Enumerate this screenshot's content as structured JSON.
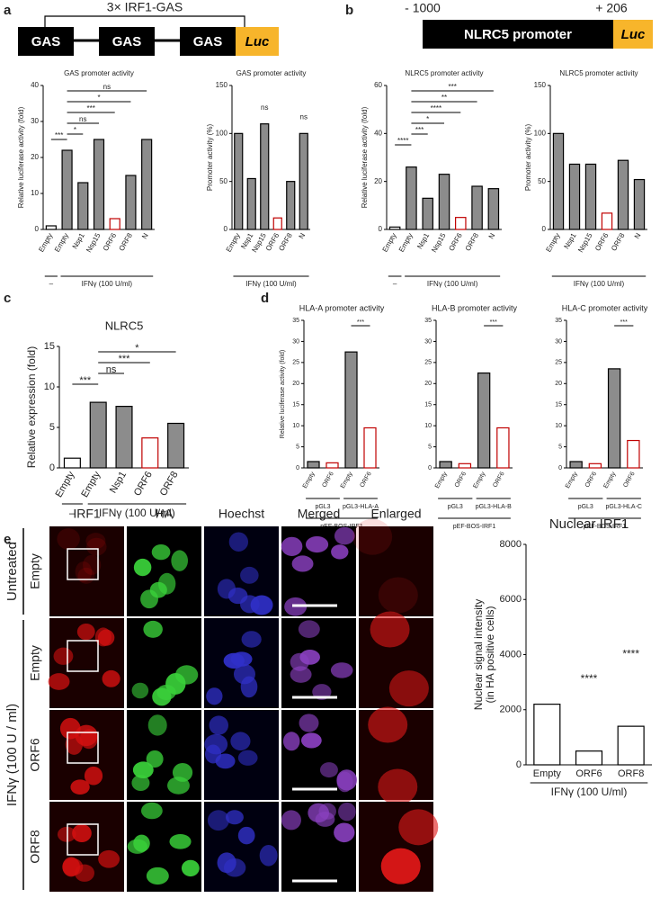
{
  "panel_labels": [
    "a",
    "b",
    "c",
    "d",
    "e"
  ],
  "diagrams": [
    {
      "bracket_label": "3× IRF1-GAS",
      "elements": [
        "GAS",
        "GAS",
        "GAS",
        "Luc"
      ]
    },
    {
      "start": "- 1000",
      "end": "+ 206",
      "elements": [
        "NLRC5 promoter",
        "Luc"
      ]
    }
  ],
  "chart_data": [
    {
      "type": "bar",
      "title": "GAS promoter activity",
      "ylabel": "Relative luciferase activity (fold)",
      "categories": [
        "Empty",
        "Empty",
        "Nsp1",
        "Nsp15",
        "ORF6",
        "ORF8",
        "N"
      ],
      "values": [
        1,
        22,
        13,
        25,
        3,
        15,
        25
      ],
      "colors": [
        "#ffffff",
        "#8c8c8c",
        "#8c8c8c",
        "#8c8c8c",
        "#ffffff",
        "#8c8c8c",
        "#8c8c8c"
      ],
      "edge_colors": [
        "#000000",
        "#000000",
        "#000000",
        "#000000",
        "#c00000",
        "#000000",
        "#000000"
      ],
      "ylim": [
        0,
        40
      ],
      "yticks": [
        0,
        10,
        20,
        30,
        40
      ],
      "annotations": [
        {
          "text": "ns",
          "between": [
            1,
            6
          ]
        },
        {
          "text": "*",
          "between": [
            1,
            5
          ]
        },
        {
          "text": "***",
          "between": [
            1,
            4
          ]
        },
        {
          "text": "ns",
          "between": [
            1,
            3
          ]
        },
        {
          "text": "*",
          "between": [
            1,
            2
          ]
        },
        {
          "text": "***",
          "between": [
            0,
            1
          ]
        }
      ],
      "groups": [
        {
          "label": "–",
          "span": [
            0,
            0
          ],
          "level": 0
        },
        {
          "label": "IFNγ (100 U/ml)",
          "span": [
            1,
            6
          ],
          "level": 0
        }
      ]
    },
    {
      "type": "bar",
      "title": "GAS promoter activity",
      "ylabel": "Promoter activity (%)",
      "categories": [
        "Empty",
        "Nsp1",
        "Nsp15",
        "ORF6",
        "ORF8",
        "N"
      ],
      "values": [
        100,
        53,
        110,
        12,
        50,
        100
      ],
      "colors": [
        "#8c8c8c",
        "#8c8c8c",
        "#8c8c8c",
        "#ffffff",
        "#8c8c8c",
        "#8c8c8c"
      ],
      "edge_colors": [
        "#000000",
        "#000000",
        "#000000",
        "#c00000",
        "#000000",
        "#000000"
      ],
      "ylim": [
        0,
        150
      ],
      "yticks": [
        0,
        50,
        100,
        150
      ],
      "annotations": [
        {
          "text": "ns",
          "over": 2
        },
        {
          "text": "ns",
          "over": 5
        }
      ],
      "groups": [
        {
          "label": "IFNγ (100 U/ml)",
          "span": [
            0,
            5
          ],
          "level": 0
        }
      ]
    },
    {
      "type": "bar",
      "title": "NLRC5 promoter activity",
      "ylabel": "Relative luciferase activity (fold)",
      "categories": [
        "Empty",
        "Empty",
        "Nsp1",
        "Nsp15",
        "ORF6",
        "ORF8",
        "N"
      ],
      "values": [
        1,
        26,
        13,
        23,
        5,
        18,
        17
      ],
      "colors": [
        "#ffffff",
        "#8c8c8c",
        "#8c8c8c",
        "#8c8c8c",
        "#ffffff",
        "#8c8c8c",
        "#8c8c8c"
      ],
      "edge_colors": [
        "#000000",
        "#000000",
        "#000000",
        "#000000",
        "#c00000",
        "#000000",
        "#000000"
      ],
      "ylim": [
        0,
        60
      ],
      "yticks": [
        0,
        20,
        40,
        60
      ],
      "annotations": [
        {
          "text": "***",
          "between": [
            1,
            6
          ]
        },
        {
          "text": "**",
          "between": [
            1,
            5
          ]
        },
        {
          "text": "****",
          "between": [
            1,
            4
          ]
        },
        {
          "text": "*",
          "between": [
            1,
            3
          ]
        },
        {
          "text": "***",
          "between": [
            1,
            2
          ]
        },
        {
          "text": "****",
          "between": [
            0,
            1
          ]
        }
      ],
      "groups": [
        {
          "label": "–",
          "span": [
            0,
            0
          ],
          "level": 0
        },
        {
          "label": "IFNγ (100 U/ml)",
          "span": [
            1,
            6
          ],
          "level": 0
        }
      ]
    },
    {
      "type": "bar",
      "title": "NLRC5 promoter activity",
      "ylabel": "Promoter activity (%)",
      "categories": [
        "Empty",
        "Nsp1",
        "Nsp15",
        "ORF6",
        "ORF8",
        "N"
      ],
      "values": [
        100,
        68,
        68,
        17,
        72,
        52
      ],
      "colors": [
        "#8c8c8c",
        "#8c8c8c",
        "#8c8c8c",
        "#ffffff",
        "#8c8c8c",
        "#8c8c8c"
      ],
      "edge_colors": [
        "#000000",
        "#000000",
        "#000000",
        "#c00000",
        "#000000",
        "#000000"
      ],
      "ylim": [
        0,
        150
      ],
      "yticks": [
        0,
        50,
        100,
        150
      ],
      "groups": [
        {
          "label": "IFNγ (100 U/ml)",
          "span": [
            0,
            5
          ],
          "level": 0
        }
      ]
    },
    {
      "type": "bar",
      "title": "NLRC5",
      "ylabel": "Relative expression (fold)",
      "categories": [
        "Empty",
        "Empty",
        "Nsp1",
        "ORF6",
        "ORF8"
      ],
      "values": [
        1.2,
        8.1,
        7.6,
        3.7,
        5.5
      ],
      "colors": [
        "#ffffff",
        "#8c8c8c",
        "#8c8c8c",
        "#ffffff",
        "#8c8c8c"
      ],
      "edge_colors": [
        "#000000",
        "#000000",
        "#000000",
        "#c00000",
        "#000000"
      ],
      "ylim": [
        0,
        15
      ],
      "yticks": [
        0,
        5,
        10,
        15
      ],
      "annotations": [
        {
          "text": "*",
          "between": [
            1,
            4
          ]
        },
        {
          "text": "***",
          "between": [
            1,
            3
          ]
        },
        {
          "text": "ns",
          "between": [
            1,
            2
          ]
        },
        {
          "text": "***",
          "between": [
            0,
            1
          ]
        }
      ],
      "groups": [
        {
          "label": "–",
          "span": [
            0,
            0
          ],
          "level": 0
        },
        {
          "label": "IFNγ (100 U/ml)",
          "span": [
            1,
            4
          ],
          "level": 0
        }
      ]
    },
    {
      "type": "bar",
      "title": "HLA-A promoter activity",
      "ylabel": "Relative luciferase activity (fold)",
      "categories": [
        "Empty",
        "ORF6",
        "Empty",
        "ORF6"
      ],
      "values": [
        1.5,
        1.2,
        27.5,
        9.5
      ],
      "colors": [
        "#8c8c8c",
        "#ffffff",
        "#8c8c8c",
        "#ffffff"
      ],
      "edge_colors": [
        "#000000",
        "#c00000",
        "#000000",
        "#c00000"
      ],
      "ylim": [
        0,
        35
      ],
      "yticks": [
        0,
        5,
        10,
        15,
        20,
        25,
        30,
        35
      ],
      "annotations": [
        {
          "text": "***",
          "between": [
            2,
            3
          ]
        }
      ],
      "groups": [
        {
          "label": "pGL3",
          "span": [
            0,
            1
          ],
          "level": 0
        },
        {
          "label": "pGL3-HLA-A",
          "span": [
            2,
            3
          ],
          "level": 0
        },
        {
          "label": "pEF-BOS-IRF1",
          "span": [
            0,
            3
          ],
          "level": 1
        }
      ]
    },
    {
      "type": "bar",
      "title": "HLA-B promoter activity",
      "categories": [
        "Empty",
        "ORF6",
        "Empty",
        "ORF6"
      ],
      "values": [
        1.5,
        1,
        22.5,
        9.5
      ],
      "colors": [
        "#8c8c8c",
        "#ffffff",
        "#8c8c8c",
        "#ffffff"
      ],
      "edge_colors": [
        "#000000",
        "#c00000",
        "#000000",
        "#c00000"
      ],
      "ylim": [
        0,
        35
      ],
      "yticks": [
        0,
        5,
        10,
        15,
        20,
        25,
        30,
        35
      ],
      "annotations": [
        {
          "text": "***",
          "between": [
            2,
            3
          ]
        }
      ],
      "groups": [
        {
          "label": "pGL3",
          "span": [
            0,
            1
          ],
          "level": 0
        },
        {
          "label": "pGL3-HLA-B",
          "span": [
            2,
            3
          ],
          "level": 0
        },
        {
          "label": "pEF-BOS-IRF1",
          "span": [
            0,
            3
          ],
          "level": 1
        }
      ]
    },
    {
      "type": "bar",
      "title": "HLA-C promoter activity",
      "categories": [
        "Empty",
        "ORF6",
        "Empty",
        "ORF6"
      ],
      "values": [
        1.5,
        1,
        23.5,
        6.5
      ],
      "colors": [
        "#8c8c8c",
        "#ffffff",
        "#8c8c8c",
        "#ffffff"
      ],
      "edge_colors": [
        "#000000",
        "#c00000",
        "#000000",
        "#c00000"
      ],
      "ylim": [
        0,
        35
      ],
      "yticks": [
        0,
        5,
        10,
        15,
        20,
        25,
        30,
        35
      ],
      "annotations": [
        {
          "text": "***",
          "between": [
            2,
            3
          ]
        }
      ],
      "groups": [
        {
          "label": "pGL3",
          "span": [
            0,
            1
          ],
          "level": 0
        },
        {
          "label": "pGL3-HLA-C",
          "span": [
            2,
            3
          ],
          "level": 0
        },
        {
          "label": "pEF-BOS-IRF1",
          "span": [
            0,
            3
          ],
          "level": 1
        }
      ]
    },
    {
      "type": "bar",
      "title": "Nuclear IRF1",
      "ylabel": [
        "Nuclear signal intensity",
        "(in HA positive cells)"
      ],
      "categories": [
        "Empty",
        "ORF6",
        "ORF8"
      ],
      "values": [
        2200,
        500,
        1400
      ],
      "colors": [
        "#ffffff",
        "#ffffff",
        "#ffffff"
      ],
      "edge_colors": [
        "#000000",
        "#000000",
        "#000000"
      ],
      "ylim": [
        0,
        8000
      ],
      "yticks": [
        0,
        2000,
        4000,
        6000,
        8000
      ],
      "annotations": [
        {
          "text": "****",
          "over": 1
        },
        {
          "text": "****",
          "over": 2
        }
      ],
      "groups": [
        {
          "label": "IFNγ (100 U/ml)",
          "span": [
            0,
            2
          ],
          "level": 0
        }
      ]
    }
  ],
  "microscopy": {
    "columns": [
      "IRF1",
      "HA",
      "Hoechst",
      "Merged",
      "Enlarged"
    ],
    "rows": [
      "Empty",
      "Empty",
      "ORF6",
      "ORF8"
    ],
    "groups": [
      {
        "label": "Untreated",
        "span": [
          0,
          0
        ]
      },
      {
        "label": "IFNγ (100 U / ml)",
        "span": [
          1,
          3
        ]
      }
    ]
  }
}
